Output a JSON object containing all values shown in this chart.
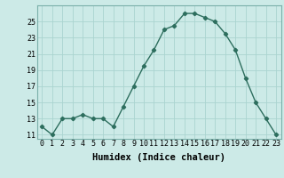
{
  "x": [
    0,
    1,
    2,
    3,
    4,
    5,
    6,
    7,
    8,
    9,
    10,
    11,
    12,
    13,
    14,
    15,
    16,
    17,
    18,
    19,
    20,
    21,
    22,
    23
  ],
  "y": [
    12.0,
    11.0,
    13.0,
    13.0,
    13.5,
    13.0,
    13.0,
    12.0,
    14.5,
    17.0,
    19.5,
    21.5,
    24.0,
    24.5,
    26.0,
    26.0,
    25.5,
    25.0,
    23.5,
    21.5,
    18.0,
    15.0,
    13.0,
    11.0
  ],
  "xlabel": "Humidex (Indice chaleur)",
  "ylim": [
    10.5,
    27.0
  ],
  "yticks": [
    11,
    13,
    15,
    17,
    19,
    21,
    23,
    25
  ],
  "xticks": [
    0,
    1,
    2,
    3,
    4,
    5,
    6,
    7,
    8,
    9,
    10,
    11,
    12,
    13,
    14,
    15,
    16,
    17,
    18,
    19,
    20,
    21,
    22,
    23
  ],
  "line_color": "#2d6e5e",
  "bg_color": "#cceae7",
  "grid_color": "#aad4d0",
  "marker": "D",
  "marker_size": 2.2,
  "line_width": 1.0,
  "xlabel_fontsize": 7.5,
  "tick_fontsize": 6.0
}
